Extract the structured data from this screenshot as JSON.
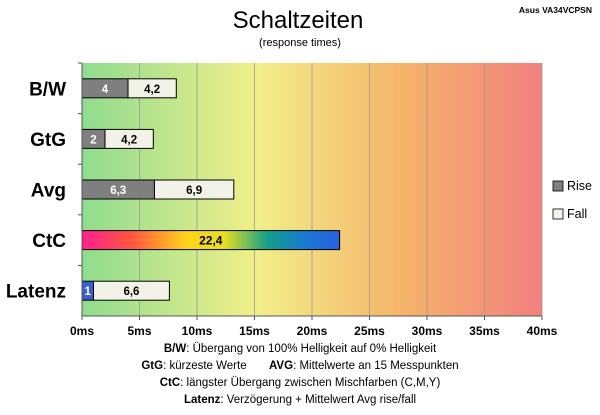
{
  "chart_data": {
    "type": "bar",
    "title": "Schaltzeiten",
    "subtitle": "(response times)",
    "watermark": "Asus VA34VCPSN",
    "categories": [
      "B/W",
      "GtG",
      "Avg",
      "CtC",
      "Latenz"
    ],
    "series": [
      {
        "name": "Rise",
        "color": "#7f7f7f",
        "values": [
          4,
          2,
          6.3,
          null,
          1
        ]
      },
      {
        "name": "Fall",
        "color": "#f2f2e8",
        "values": [
          4.2,
          4.2,
          6.9,
          null,
          6.6
        ]
      }
    ],
    "ctc": {
      "category": "CtC",
      "value": 22.4,
      "label": "22,4"
    },
    "latenz_rise_color": "#3a5fcd",
    "value_labels": {
      "rise": [
        "4",
        "2",
        "6,3",
        "",
        "1"
      ],
      "fall": [
        "4,2",
        "4,2",
        "6,9",
        "",
        "6,6"
      ]
    },
    "stacked": true,
    "xlim": [
      0,
      40
    ],
    "xticks": [
      0,
      5,
      10,
      15,
      20,
      25,
      30,
      35,
      40
    ],
    "xtick_labels": [
      "0ms",
      "5ms",
      "10ms",
      "15ms",
      "20ms",
      "25ms",
      "30ms",
      "35ms",
      "40ms"
    ],
    "xlabel": "",
    "ylabel": "",
    "grid": true,
    "legend_position": "right",
    "background_gradient": [
      "#8fdc8f",
      "#f2ef8a",
      "#f5b36a",
      "#f28080"
    ]
  },
  "footer": {
    "line1_key": "B/W",
    "line1_text": ":  Übergang von 100% Helligkeit auf 0% Helligkeit",
    "line2_key1": "GtG",
    "line2_text1": ": kürzeste  Werte",
    "line2_key2": "AVG",
    "line2_text2": ": Mittelwerte  an 15 Messpunkten",
    "line3_key": "CtC",
    "line3_text": ": längster Übergang  zwischen Mischfarben (C,M,Y)",
    "line4_key": "Latenz",
    "line4_text": ": Verzögerung  + Mittelwert  Avg rise/fall"
  }
}
